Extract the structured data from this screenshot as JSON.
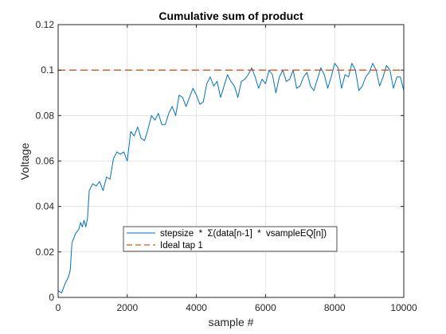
{
  "colors": {
    "series_main": "#0072BD",
    "series_ideal": "#D95319",
    "grid": "#dfdfdf",
    "axis": "#262626",
    "background": "#ffffff"
  },
  "chart_data": {
    "type": "line",
    "title": "Cumulative sum of product",
    "xlabel": "sample #",
    "ylabel": "Voltage",
    "xlim": [
      0,
      10000
    ],
    "ylim": [
      0,
      0.12
    ],
    "xticks": [
      0,
      2000,
      4000,
      6000,
      8000,
      10000
    ],
    "xtick_labels": [
      "0",
      "2000",
      "4000",
      "6000",
      "8000",
      "10000"
    ],
    "yticks": [
      0,
      0.02,
      0.04,
      0.06,
      0.08,
      0.1,
      0.12
    ],
    "ytick_labels": [
      "0",
      "0.02",
      "0.04",
      "0.06",
      "0.08",
      "0.1",
      "0.12"
    ],
    "grid": true,
    "legend_position": "lower-center",
    "series": [
      {
        "name": "stepsize  *  Σ(data[n-1]  *  vsampleEQ[n])",
        "style": "solid",
        "x": [
          0,
          100,
          200,
          300,
          350,
          400,
          500,
          600,
          650,
          700,
          750,
          800,
          850,
          900,
          1000,
          1100,
          1200,
          1300,
          1400,
          1500,
          1600,
          1700,
          1800,
          1900,
          2000,
          2100,
          2200,
          2300,
          2400,
          2500,
          2600,
          2700,
          2800,
          2900,
          3000,
          3100,
          3200,
          3300,
          3400,
          3500,
          3600,
          3700,
          3800,
          3900,
          4000,
          4100,
          4200,
          4300,
          4400,
          4500,
          4600,
          4700,
          4800,
          4900,
          5000,
          5100,
          5200,
          5300,
          5400,
          5500,
          5600,
          5700,
          5800,
          5900,
          6000,
          6100,
          6200,
          6300,
          6400,
          6500,
          6600,
          6700,
          6800,
          6900,
          7000,
          7100,
          7200,
          7300,
          7400,
          7500,
          7600,
          7700,
          7800,
          7900,
          8000,
          8100,
          8200,
          8300,
          8400,
          8500,
          8600,
          8700,
          8800,
          8900,
          9000,
          9100,
          9200,
          9300,
          9400,
          9500,
          9600,
          9700,
          9800,
          9900,
          10000
        ],
        "y": [
          0.003,
          0.002,
          0.006,
          0.009,
          0.012,
          0.024,
          0.028,
          0.03,
          0.033,
          0.031,
          0.034,
          0.031,
          0.035,
          0.047,
          0.05,
          0.049,
          0.051,
          0.047,
          0.053,
          0.052,
          0.061,
          0.064,
          0.063,
          0.064,
          0.06,
          0.073,
          0.071,
          0.075,
          0.07,
          0.069,
          0.074,
          0.08,
          0.078,
          0.081,
          0.076,
          0.076,
          0.081,
          0.084,
          0.08,
          0.089,
          0.088,
          0.084,
          0.088,
          0.092,
          0.089,
          0.085,
          0.086,
          0.094,
          0.097,
          0.093,
          0.095,
          0.088,
          0.093,
          0.098,
          0.095,
          0.093,
          0.088,
          0.095,
          0.096,
          0.098,
          0.101,
          0.097,
          0.092,
          0.096,
          0.094,
          0.1,
          0.098,
          0.09,
          0.097,
          0.1,
          0.095,
          0.096,
          0.1,
          0.092,
          0.093,
          0.097,
          0.099,
          0.093,
          0.091,
          0.096,
          0.101,
          0.098,
          0.092,
          0.097,
          0.103,
          0.101,
          0.092,
          0.098,
          0.097,
          0.103,
          0.1,
          0.091,
          0.093,
          0.097,
          0.099,
          0.103,
          0.1,
          0.093,
          0.097,
          0.102,
          0.1,
          0.092,
          0.097,
          0.097,
          0.091
        ]
      },
      {
        "name": "Ideal tap 1",
        "style": "dashed",
        "x": [
          0,
          10000
        ],
        "y": [
          0.1,
          0.1
        ]
      }
    ]
  }
}
